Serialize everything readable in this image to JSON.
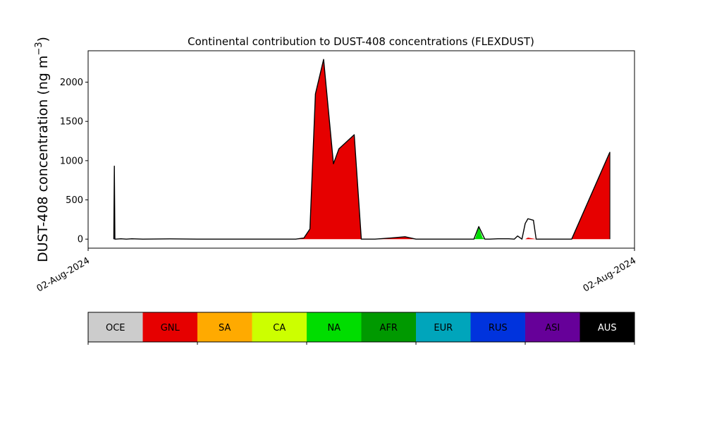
{
  "chart_data": {
    "type": "area",
    "title": "Continental contribution to DUST-408 concentrations (FLEXDUST)",
    "ylabel_main": "DUST-408 concentration (ng m",
    "ylabel_sup": "−3",
    "ylabel_close": ")",
    "xlabel": "",
    "ylim": [
      -115,
      2400
    ],
    "xlim": [
      0,
      100
    ],
    "y_ticks": [
      0,
      500,
      1000,
      1500,
      2000
    ],
    "x_ticks": [
      {
        "x": 0,
        "label": "02-Aug-2024"
      },
      {
        "x": 100,
        "label": "02-Aug-2024"
      }
    ],
    "grid": false,
    "legend_position": "below-plot",
    "series": [
      {
        "name": "GNL",
        "color": "#e60000",
        "x": [
          4.7,
          4.8,
          4.9,
          5.0,
          38.0,
          39.5,
          40.6,
          41.6,
          43.1,
          44.9,
          45.9,
          48.7,
          50.0,
          52.5,
          55.4,
          58.0,
          60.0,
          80.0,
          80.5,
          82.0,
          84.0,
          88.5,
          95.5
        ],
        "values": [
          0,
          270,
          0,
          0,
          0,
          15,
          130,
          1850,
          2280,
          960,
          1150,
          1320,
          0,
          0,
          15,
          30,
          0,
          0,
          20,
          0,
          0,
          0,
          1110
        ]
      },
      {
        "name": "NA",
        "color": "#00dd00",
        "x": [
          70.6,
          70.9,
          71.5,
          72.2,
          72.6
        ],
        "values": [
          0,
          20,
          150,
          20,
          0
        ]
      },
      {
        "name": "RUS",
        "color": "#0033dd",
        "x": [
          4.7,
          4.8,
          4.9
        ],
        "values": [
          0,
          920,
          0
        ]
      }
    ],
    "total": {
      "x": [
        4.7,
        4.8,
        4.9,
        5.0,
        6.0,
        7.0,
        8.0,
        10.0,
        15.0,
        20.0,
        30.0,
        38.0,
        39.5,
        40.6,
        41.6,
        43.1,
        44.9,
        45.9,
        48.7,
        50.0,
        52.5,
        55.4,
        58.0,
        60.0,
        70.6,
        71.5,
        72.6,
        73.5,
        75.0,
        77.0,
        78.0,
        78.6,
        79.4,
        80.0,
        80.5,
        81.5,
        82.0,
        84.0,
        88.5,
        95.5
      ],
      "values": [
        0,
        930,
        0,
        0,
        5,
        0,
        5,
        0,
        3,
        0,
        0,
        0,
        15,
        130,
        1850,
        2290,
        960,
        1150,
        1330,
        0,
        0,
        15,
        30,
        0,
        0,
        160,
        0,
        0,
        5,
        5,
        0,
        40,
        0,
        200,
        260,
        240,
        0,
        0,
        0,
        1110
      ]
    },
    "legend": [
      {
        "name": "OCE",
        "color": "#cccccc",
        "text_color": "#000000"
      },
      {
        "name": "GNL",
        "color": "#e60000",
        "text_color": "#000000"
      },
      {
        "name": "SA",
        "color": "#ffaa00",
        "text_color": "#000000"
      },
      {
        "name": "CA",
        "color": "#ccff00",
        "text_color": "#000000"
      },
      {
        "name": "NA",
        "color": "#00dd00",
        "text_color": "#000000"
      },
      {
        "name": "AFR",
        "color": "#009900",
        "text_color": "#000000"
      },
      {
        "name": "EUR",
        "color": "#00a5bb",
        "text_color": "#000000"
      },
      {
        "name": "RUS",
        "color": "#0033dd",
        "text_color": "#000000"
      },
      {
        "name": "ASI",
        "color": "#660099",
        "text_color": "#000000"
      },
      {
        "name": "AUS",
        "color": "#000000",
        "text_color": "#ffffff"
      }
    ]
  }
}
